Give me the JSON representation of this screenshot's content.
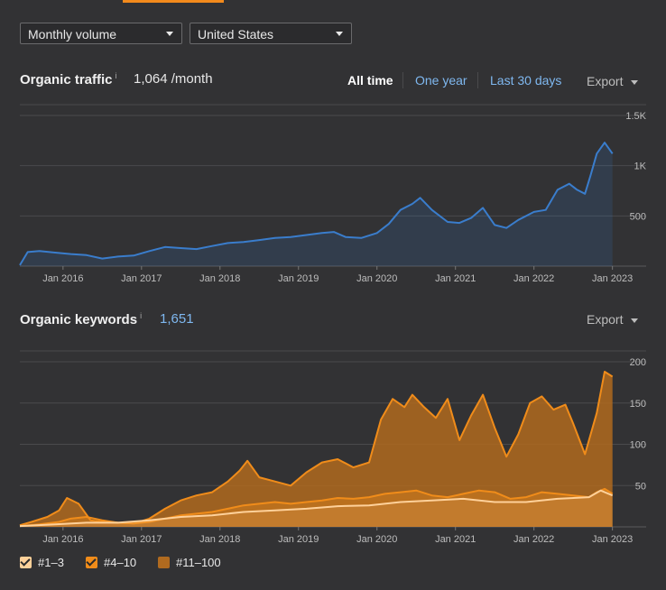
{
  "controls": {
    "volume_select": "Monthly volume",
    "country_select": "United States"
  },
  "traffic_section": {
    "title": "Organic traffic",
    "info": "i",
    "value": "1,064 /month",
    "ranges": [
      "All time",
      "One year",
      "Last 30 days"
    ],
    "export": "Export"
  },
  "keywords_section": {
    "title": "Organic keywords",
    "info": "i",
    "value": "1,651",
    "export": "Export"
  },
  "colors": {
    "traffic_line": "#3a7dcc",
    "top3": "#ffd19a",
    "pos4_10": "#f08c1a",
    "pos11_100": "#b06a1f",
    "link": "#7fb8f0"
  },
  "chart_data": [
    {
      "type": "line",
      "title": "Organic traffic",
      "x_ticks": [
        "Jan 2016",
        "Jan 2017",
        "Jan 2018",
        "Jan 2019",
        "Jan 2020",
        "Jan 2021",
        "Jan 2022",
        "Jan 2023"
      ],
      "y_ticks": [
        "500",
        "1K",
        "1.5K"
      ],
      "ylim": [
        0,
        1500
      ],
      "xlim": [
        2015.45,
        2023.05
      ],
      "series": [
        {
          "x": [
            2015.45,
            2015.55,
            2015.7,
            2015.9,
            2016.1,
            2016.3,
            2016.5,
            2016.7,
            2016.9,
            2017.1,
            2017.3,
            2017.5,
            2017.7,
            2017.9,
            2018.1,
            2018.3,
            2018.5,
            2018.7,
            2018.9,
            2019.1,
            2019.3,
            2019.45,
            2019.6,
            2019.8,
            2020.0,
            2020.15,
            2020.3,
            2020.45,
            2020.55,
            2020.7,
            2020.9,
            2021.05,
            2021.2,
            2021.35,
            2021.5,
            2021.65,
            2021.8,
            2022.0,
            2022.15,
            2022.3,
            2022.45,
            2022.55,
            2022.65,
            2022.72,
            2022.8,
            2022.9,
            2023.0
          ],
          "y": [
            10,
            140,
            150,
            135,
            120,
            110,
            75,
            95,
            105,
            150,
            190,
            180,
            170,
            200,
            230,
            240,
            260,
            280,
            290,
            310,
            330,
            340,
            290,
            280,
            330,
            420,
            560,
            620,
            680,
            560,
            440,
            430,
            480,
            580,
            410,
            380,
            460,
            540,
            560,
            760,
            820,
            760,
            720,
            900,
            1120,
            1230,
            1120
          ]
        }
      ]
    },
    {
      "type": "area",
      "title": "Organic keywords",
      "x_ticks": [
        "Jan 2016",
        "Jan 2017",
        "Jan 2018",
        "Jan 2019",
        "Jan 2020",
        "Jan 2021",
        "Jan 2022",
        "Jan 2023"
      ],
      "y_ticks": [
        "50",
        "100",
        "150",
        "200"
      ],
      "ylim": [
        0,
        200
      ],
      "xlim": [
        2015.45,
        2023.05
      ],
      "series": [
        {
          "name": "#11–100",
          "x": [
            2015.45,
            2015.6,
            2015.8,
            2015.95,
            2016.05,
            2016.2,
            2016.35,
            2016.5,
            2016.7,
            2016.9,
            2017.1,
            2017.3,
            2017.5,
            2017.7,
            2017.9,
            2018.1,
            2018.25,
            2018.35,
            2018.5,
            2018.7,
            2018.9,
            2019.1,
            2019.3,
            2019.5,
            2019.7,
            2019.9,
            2020.05,
            2020.2,
            2020.35,
            2020.45,
            2020.6,
            2020.75,
            2020.9,
            2021.05,
            2021.2,
            2021.35,
            2021.5,
            2021.65,
            2021.8,
            2021.95,
            2022.1,
            2022.25,
            2022.4,
            2022.5,
            2022.65,
            2022.8,
            2022.9,
            2023.0
          ],
          "y": [
            2,
            6,
            12,
            20,
            35,
            28,
            8,
            6,
            5,
            4,
            10,
            22,
            32,
            38,
            42,
            55,
            68,
            80,
            60,
            55,
            50,
            66,
            78,
            82,
            72,
            78,
            130,
            155,
            145,
            160,
            145,
            132,
            155,
            105,
            135,
            160,
            120,
            85,
            112,
            150,
            158,
            142,
            148,
            125,
            88,
            138,
            188,
            182
          ]
        },
        {
          "name": "#4–10",
          "x": [
            2015.45,
            2015.7,
            2015.95,
            2016.1,
            2016.3,
            2016.5,
            2016.7,
            2016.9,
            2017.1,
            2017.3,
            2017.5,
            2017.7,
            2017.9,
            2018.1,
            2018.3,
            2018.5,
            2018.7,
            2018.9,
            2019.1,
            2019.3,
            2019.5,
            2019.7,
            2019.9,
            2020.1,
            2020.3,
            2020.5,
            2020.7,
            2020.9,
            2021.1,
            2021.3,
            2021.5,
            2021.7,
            2021.9,
            2022.1,
            2022.3,
            2022.5,
            2022.7,
            2022.8,
            2022.9,
            2023.0
          ],
          "y": [
            1,
            3,
            6,
            10,
            12,
            8,
            5,
            4,
            6,
            10,
            14,
            16,
            18,
            22,
            26,
            28,
            30,
            28,
            30,
            32,
            35,
            34,
            36,
            40,
            42,
            44,
            38,
            36,
            40,
            44,
            42,
            34,
            36,
            42,
            40,
            38,
            36,
            42,
            46,
            40
          ]
        },
        {
          "name": "#1–3",
          "x": [
            2015.45,
            2015.9,
            2016.3,
            2016.7,
            2017.1,
            2017.5,
            2017.9,
            2018.3,
            2018.7,
            2019.1,
            2019.5,
            2019.9,
            2020.3,
            2020.7,
            2021.1,
            2021.5,
            2021.9,
            2022.3,
            2022.7,
            2022.85,
            2023.0
          ],
          "y": [
            1,
            3,
            5,
            5,
            8,
            12,
            14,
            18,
            20,
            22,
            25,
            26,
            30,
            32,
            34,
            30,
            30,
            34,
            36,
            44,
            38
          ]
        }
      ],
      "legend": [
        "#1–3",
        "#4–10",
        "#11–100"
      ]
    }
  ]
}
